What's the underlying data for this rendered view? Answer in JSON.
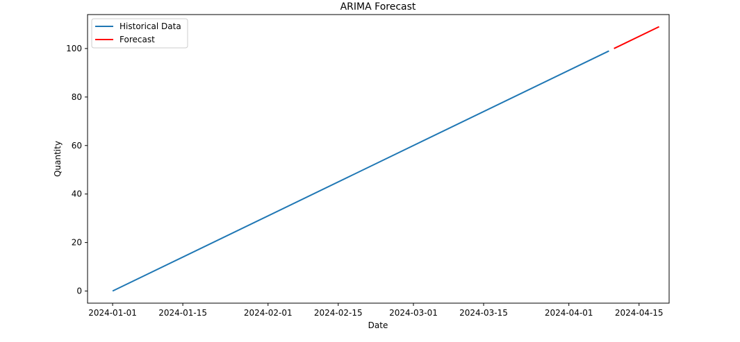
{
  "chart_data": {
    "type": "line",
    "title": "ARIMA Forecast",
    "xlabel": "Date",
    "ylabel": "Quantity",
    "x_axis_type": "date",
    "xlim": [
      "2023-12-27",
      "2024-04-21"
    ],
    "ylim": [
      -5,
      114
    ],
    "x_ticks": [
      "2024-01-01",
      "2024-01-15",
      "2024-02-01",
      "2024-02-15",
      "2024-03-01",
      "2024-03-15",
      "2024-04-01",
      "2024-04-15"
    ],
    "x_tick_labels": [
      "2024-01-01",
      "2024-01-15",
      "2024-02-01",
      "2024-02-15",
      "2024-03-01",
      "2024-03-15",
      "2024-04-01",
      "2024-04-15"
    ],
    "y_ticks": [
      0,
      20,
      40,
      60,
      80,
      100
    ],
    "y_tick_labels": [
      "0",
      "20",
      "40",
      "60",
      "80",
      "100"
    ],
    "grid": false,
    "legend_position": "top-left",
    "series": [
      {
        "name": "Historical Data",
        "color": "#1f77b4",
        "x": [
          "2024-01-01",
          "2024-04-09"
        ],
        "y": [
          0,
          99
        ]
      },
      {
        "name": "Forecast",
        "color": "#ff0000",
        "x": [
          "2024-04-10",
          "2024-04-19"
        ],
        "y": [
          100,
          109
        ]
      }
    ]
  }
}
